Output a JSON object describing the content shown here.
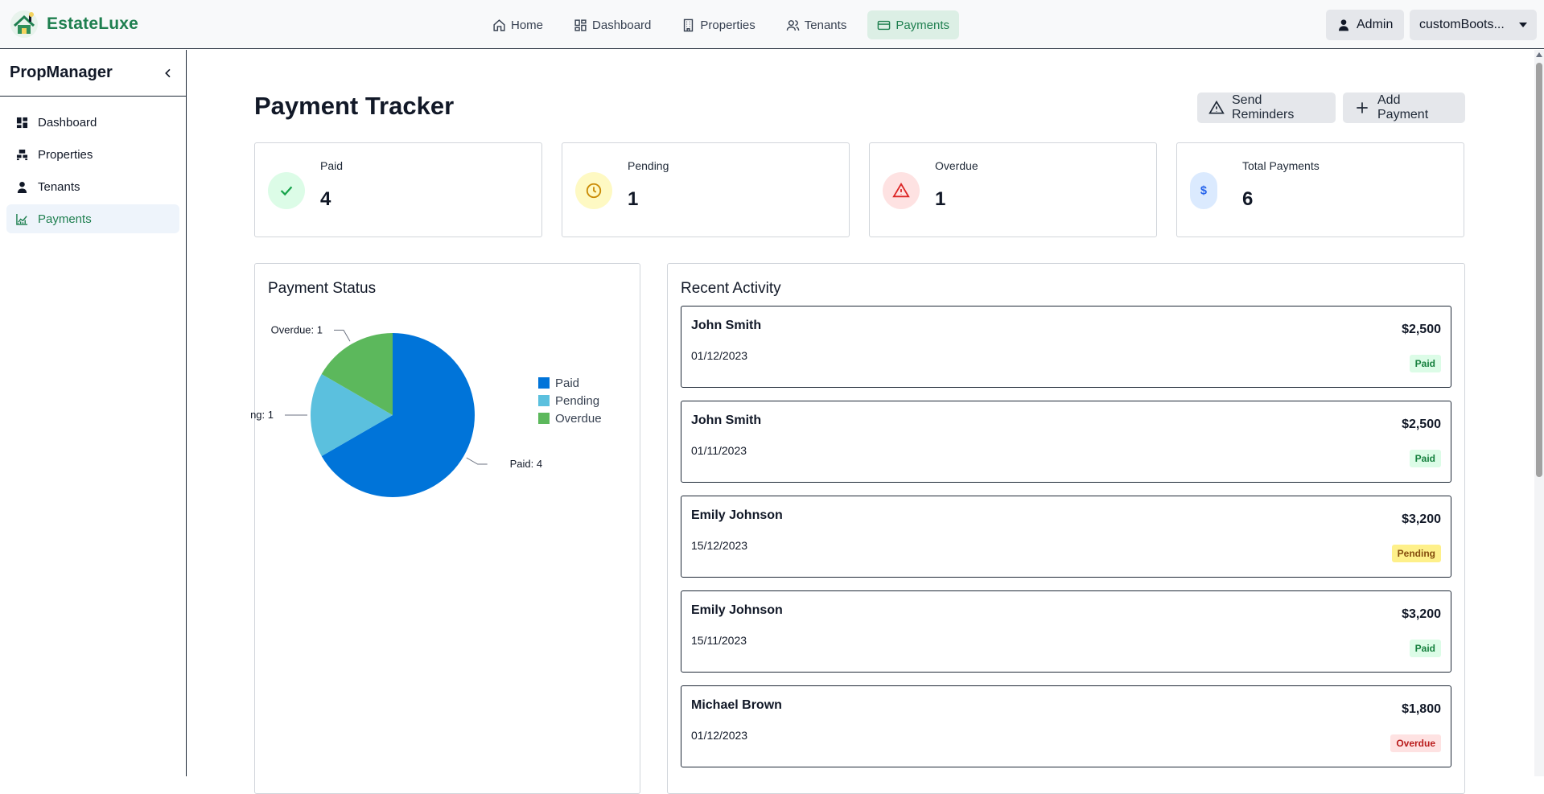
{
  "app": {
    "brand_name": "EstateLuxe",
    "accent": "#1e7f4f"
  },
  "topnav": {
    "items": [
      {
        "label": "Home",
        "icon": "home-icon",
        "active": false
      },
      {
        "label": "Dashboard",
        "icon": "dashboard-icon",
        "active": false
      },
      {
        "label": "Properties",
        "icon": "building-icon",
        "active": false
      },
      {
        "label": "Tenants",
        "icon": "users-icon",
        "active": false
      },
      {
        "label": "Payments",
        "icon": "credit-card-icon",
        "active": true
      }
    ],
    "admin_label": "Admin",
    "user_select_value": "customBoots..."
  },
  "sidebar": {
    "title": "PropManager",
    "items": [
      {
        "label": "Dashboard",
        "icon": "grid-icon",
        "active": false
      },
      {
        "label": "Properties",
        "icon": "blocks-icon",
        "active": false
      },
      {
        "label": "Tenants",
        "icon": "person-icon",
        "active": false
      },
      {
        "label": "Payments",
        "icon": "chart-icon",
        "active": true
      }
    ]
  },
  "page": {
    "title": "Payment Tracker",
    "send_reminders_label": "Send Reminders",
    "add_payment_label": "Add Payment"
  },
  "stats": [
    {
      "label": "Paid",
      "value": "4",
      "icon": "check-icon",
      "icon_color": "#16a34a",
      "bg": "#dcfce7"
    },
    {
      "label": "Pending",
      "value": "1",
      "icon": "clock-icon",
      "icon_color": "#ca8a04",
      "bg": "#fef9c3"
    },
    {
      "label": "Overdue",
      "value": "1",
      "icon": "warning-icon",
      "icon_color": "#dc2626",
      "bg": "#fee2e2"
    },
    {
      "label": "Total Payments",
      "value": "6",
      "icon": "dollar-icon",
      "icon_color": "#2563eb",
      "bg": "#dbeafe"
    }
  ],
  "status_panel": {
    "title": "Payment Status"
  },
  "chart_data": {
    "type": "pie",
    "categories": [
      "Paid",
      "Pending",
      "Overdue"
    ],
    "values": [
      4,
      1,
      1
    ],
    "colors": [
      "#0074d9",
      "#5bc0de",
      "#5cb85c"
    ],
    "slice_labels": [
      "Paid: 4",
      "ng: 1",
      "Overdue: 1"
    ],
    "legend": [
      "Paid",
      "Pending",
      "Overdue"
    ],
    "legend_position": "right"
  },
  "activity_panel": {
    "title": "Recent Activity",
    "items": [
      {
        "name": "John Smith",
        "date": "01/12/2023",
        "amount": "$2,500",
        "status": "Paid"
      },
      {
        "name": "John Smith",
        "date": "01/11/2023",
        "amount": "$2,500",
        "status": "Paid"
      },
      {
        "name": "Emily Johnson",
        "date": "15/12/2023",
        "amount": "$3,200",
        "status": "Pending"
      },
      {
        "name": "Emily Johnson",
        "date": "15/11/2023",
        "amount": "$3,200",
        "status": "Paid"
      },
      {
        "name": "Michael Brown",
        "date": "01/12/2023",
        "amount": "$1,800",
        "status": "Overdue"
      }
    ]
  },
  "status_colors": {
    "Paid": {
      "bg": "#dcfce7",
      "fg": "#15803d"
    },
    "Pending": {
      "bg": "#fef08a",
      "fg": "#854d0e"
    },
    "Overdue": {
      "bg": "#fee2e2",
      "fg": "#b91c1c"
    }
  }
}
